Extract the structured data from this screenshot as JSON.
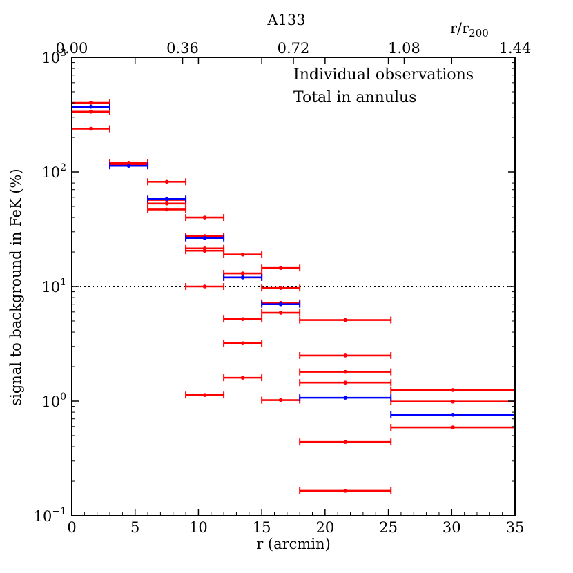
{
  "chart_data": {
    "type": "scatter",
    "title": "A133",
    "xlabel": "r (arcmin)",
    "ylabel": "signal to background in FeK (%)",
    "top_axis_label": "r/r",
    "top_axis_label_sub": "200",
    "xlim": [
      0,
      35
    ],
    "ylim": [
      0.1,
      1000
    ],
    "yscale": "log",
    "x_ticks": [
      0,
      5,
      10,
      15,
      20,
      25,
      30,
      35
    ],
    "x_tick_labels": [
      "0",
      "5",
      "10",
      "15",
      "20",
      "25",
      "30",
      "35"
    ],
    "y_ticks": [
      {
        "value": 0.1,
        "base": "10",
        "exp": "−1"
      },
      {
        "value": 1,
        "base": "10",
        "exp": "0"
      },
      {
        "value": 10,
        "base": "10",
        "exp": "1"
      },
      {
        "value": 100,
        "base": "10",
        "exp": "2"
      },
      {
        "value": 1000,
        "base": "10",
        "exp": "3"
      }
    ],
    "top_ticks": [
      {
        "x": 0,
        "label": "0.00"
      },
      {
        "x": 8.75,
        "label": "0.36"
      },
      {
        "x": 17.5,
        "label": "0.72"
      },
      {
        "x": 26.25,
        "label": "1.08"
      },
      {
        "x": 35,
        "label": "1.44"
      }
    ],
    "reference_line": {
      "y": 10,
      "style": "dotted"
    },
    "legend": [
      {
        "label": "Individual observations",
        "color": "#ff0000"
      },
      {
        "label": "Total in annulus",
        "color": "#0000ff"
      }
    ],
    "series": [
      {
        "name": "Individual observations",
        "color": "#ff0000",
        "points": [
          {
            "x": 1.5,
            "xmin": 0,
            "xmax": 3,
            "y": 400
          },
          {
            "x": 1.5,
            "xmin": 0,
            "xmax": 3,
            "y": 335
          },
          {
            "x": 1.5,
            "xmin": 0,
            "xmax": 3,
            "y": 238
          },
          {
            "x": 4.5,
            "xmin": 3,
            "xmax": 6,
            "y": 120
          },
          {
            "x": 4.5,
            "xmin": 3,
            "xmax": 6,
            "y": 115
          },
          {
            "x": 7.5,
            "xmin": 6,
            "xmax": 9,
            "y": 82
          },
          {
            "x": 7.5,
            "xmin": 6,
            "xmax": 9,
            "y": 57
          },
          {
            "x": 7.5,
            "xmin": 6,
            "xmax": 9,
            "y": 53
          },
          {
            "x": 7.5,
            "xmin": 6,
            "xmax": 9,
            "y": 47
          },
          {
            "x": 10.5,
            "xmin": 9,
            "xmax": 12,
            "y": 40
          },
          {
            "x": 10.5,
            "xmin": 9,
            "xmax": 12,
            "y": 27.5
          },
          {
            "x": 10.5,
            "xmin": 9,
            "xmax": 12,
            "y": 21.5
          },
          {
            "x": 10.5,
            "xmin": 9,
            "xmax": 12,
            "y": 20.5
          },
          {
            "x": 10.5,
            "xmin": 9,
            "xmax": 12,
            "y": 10
          },
          {
            "x": 10.5,
            "xmin": 9,
            "xmax": 12,
            "y": 1.13
          },
          {
            "x": 13.5,
            "xmin": 12,
            "xmax": 15,
            "y": 19
          },
          {
            "x": 13.5,
            "xmin": 12,
            "xmax": 15,
            "y": 13
          },
          {
            "x": 13.5,
            "xmin": 12,
            "xmax": 15,
            "y": 12
          },
          {
            "x": 13.5,
            "xmin": 12,
            "xmax": 15,
            "y": 5.2
          },
          {
            "x": 13.5,
            "xmin": 12,
            "xmax": 15,
            "y": 3.2
          },
          {
            "x": 13.5,
            "xmin": 12,
            "xmax": 15,
            "y": 1.6
          },
          {
            "x": 16.5,
            "xmin": 15,
            "xmax": 18,
            "y": 14.5
          },
          {
            "x": 16.5,
            "xmin": 15,
            "xmax": 18,
            "y": 9.7
          },
          {
            "x": 16.5,
            "xmin": 15,
            "xmax": 18,
            "y": 7.2
          },
          {
            "x": 16.5,
            "xmin": 15,
            "xmax": 18,
            "y": 5.9
          },
          {
            "x": 16.5,
            "xmin": 15,
            "xmax": 18,
            "y": 1.02
          },
          {
            "x": 21.6,
            "xmin": 18,
            "xmax": 25.2,
            "y": 5.1
          },
          {
            "x": 21.6,
            "xmin": 18,
            "xmax": 25.2,
            "y": 2.5
          },
          {
            "x": 21.6,
            "xmin": 18,
            "xmax": 25.2,
            "y": 1.8
          },
          {
            "x": 21.6,
            "xmin": 18,
            "xmax": 25.2,
            "y": 1.45
          },
          {
            "x": 21.6,
            "xmin": 18,
            "xmax": 25.2,
            "y": 0.44
          },
          {
            "x": 21.6,
            "xmin": 18,
            "xmax": 25.2,
            "y": 0.165
          },
          {
            "x": 30.1,
            "xmin": 25.2,
            "xmax": 35,
            "y": 1.25
          },
          {
            "x": 30.1,
            "xmin": 25.2,
            "xmax": 35,
            "y": 0.99
          },
          {
            "x": 30.1,
            "xmin": 25.2,
            "xmax": 35,
            "y": 0.59
          }
        ]
      },
      {
        "name": "Total in annulus",
        "color": "#0000ff",
        "points": [
          {
            "x": 1.5,
            "xmin": 0,
            "xmax": 3,
            "y": 370
          },
          {
            "x": 4.5,
            "xmin": 3,
            "xmax": 6,
            "y": 113
          },
          {
            "x": 7.5,
            "xmin": 6,
            "xmax": 9,
            "y": 58
          },
          {
            "x": 10.5,
            "xmin": 9,
            "xmax": 12,
            "y": 26.5
          },
          {
            "x": 13.5,
            "xmin": 12,
            "xmax": 15,
            "y": 12
          },
          {
            "x": 16.5,
            "xmin": 15,
            "xmax": 18,
            "y": 7
          },
          {
            "x": 21.6,
            "xmin": 18,
            "xmax": 25.2,
            "y": 1.07
          },
          {
            "x": 30.1,
            "xmin": 25.2,
            "xmax": 35,
            "y": 0.76
          }
        ]
      }
    ]
  }
}
